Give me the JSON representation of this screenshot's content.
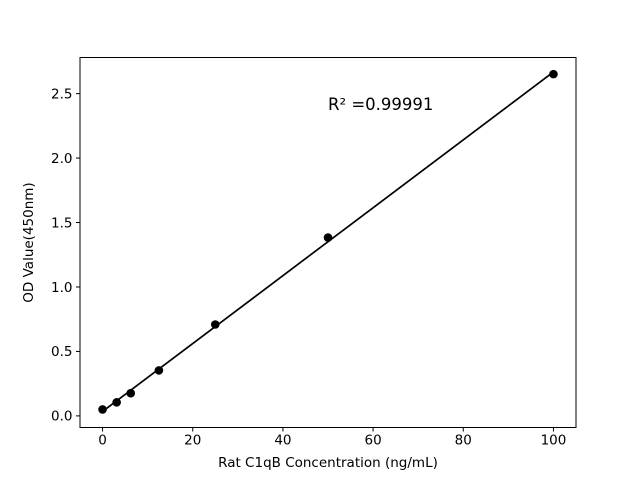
{
  "figure": {
    "background": "#ffffff"
  },
  "chart_data": {
    "type": "scatter",
    "title": "",
    "xlabel": "Rat C1qB Concentration (ng/mL)",
    "ylabel": "OD Value(450nm)",
    "x": [
      0,
      3.125,
      6.25,
      12.5,
      25,
      50,
      100
    ],
    "y": [
      0.05,
      0.105,
      0.176,
      0.353,
      0.709,
      1.383,
      2.651
    ],
    "fit_line": true,
    "annotation": {
      "text": "R² =0.99991",
      "r_squared": 0.99991
    },
    "xlim": [
      -5,
      105
    ],
    "ylim": [
      -0.09,
      2.78
    ],
    "xticks": [
      "0",
      "20",
      "40",
      "60",
      "80",
      "100"
    ],
    "yticks": [
      "0.0",
      "0.5",
      "1.0",
      "1.5",
      "2.0",
      "2.5"
    ],
    "grid": false,
    "legend": "none",
    "colors": {
      "marker": "#000000",
      "line": "#000000",
      "axis": "#000000",
      "text": "#000000",
      "background": "#ffffff"
    }
  }
}
